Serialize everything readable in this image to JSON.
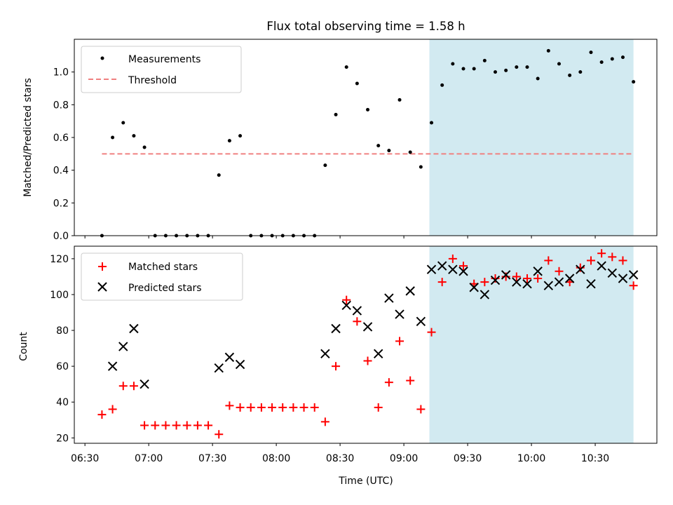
{
  "title": "Flux total observing time = 1.58 h",
  "colors": {
    "measurement": "#000000",
    "threshold": "#f08080",
    "matched": "#ff0000",
    "predicted": "#000000",
    "highlight": "#add8e6"
  },
  "chart_data": [
    {
      "type": "scatter",
      "name": "ratio-panel",
      "ylabel": "Matched/Predicted stars",
      "xlabel": "",
      "ylim": [
        0,
        1.2
      ],
      "yticks": [
        "0.0",
        "0.2",
        "0.4",
        "0.6",
        "0.8",
        "1.0"
      ],
      "legend": {
        "placement": "upper-left",
        "entries": [
          "Measurements",
          "Threshold"
        ]
      },
      "threshold": {
        "name": "Threshold",
        "value": 0.5,
        "x_start": "06:38",
        "x_end": "10:48"
      },
      "highlight_span": {
        "start": "09:12",
        "end": "10:48"
      },
      "series": [
        {
          "name": "Measurements",
          "x": [
            "06:38",
            "06:43",
            "06:48",
            "06:53",
            "06:58",
            "07:03",
            "07:08",
            "07:13",
            "07:18",
            "07:23",
            "07:28",
            "07:33",
            "07:38",
            "07:43",
            "07:48",
            "07:53",
            "07:58",
            "08:03",
            "08:08",
            "08:13",
            "08:18",
            "08:23",
            "08:28",
            "08:33",
            "08:38",
            "08:43",
            "08:48",
            "08:53",
            "08:58",
            "09:03",
            "09:08",
            "09:13",
            "09:18",
            "09:23",
            "09:28",
            "09:33",
            "09:38",
            "09:43",
            "09:48",
            "09:53",
            "09:58",
            "10:03",
            "10:08",
            "10:13",
            "10:18",
            "10:23",
            "10:28",
            "10:33",
            "10:38",
            "10:43",
            "10:48"
          ],
          "y": [
            0.0,
            0.6,
            0.69,
            0.61,
            0.54,
            0.0,
            0.0,
            0.0,
            0.0,
            0.0,
            0.0,
            0.37,
            0.58,
            0.61,
            0.0,
            0.0,
            0.0,
            0.0,
            0.0,
            0.0,
            0.0,
            0.43,
            0.74,
            1.03,
            0.93,
            0.77,
            0.55,
            0.52,
            0.83,
            0.51,
            0.42,
            0.69,
            0.92,
            1.05,
            1.02,
            1.02,
            1.07,
            1.0,
            1.01,
            1.03,
            1.03,
            0.96,
            1.13,
            1.05,
            0.98,
            1.0,
            1.12,
            1.06,
            1.08,
            1.09,
            0.94
          ]
        }
      ]
    },
    {
      "type": "scatter",
      "name": "count-panel",
      "ylabel": "Count",
      "xlabel": "Time (UTC)",
      "ylim": [
        17,
        127
      ],
      "yticks": [
        "20",
        "40",
        "60",
        "80",
        "100",
        "120"
      ],
      "xticks": [
        "06:30",
        "07:00",
        "07:30",
        "08:00",
        "08:30",
        "09:00",
        "09:30",
        "10:00",
        "10:30"
      ],
      "legend": {
        "placement": "upper-left",
        "entries": [
          "Matched stars",
          "Predicted stars"
        ]
      },
      "highlight_span": {
        "start": "09:12",
        "end": "10:48"
      },
      "series": [
        {
          "name": "Matched stars",
          "marker": "+",
          "x": [
            "06:38",
            "06:43",
            "06:48",
            "06:53",
            "06:58",
            "07:03",
            "07:08",
            "07:13",
            "07:18",
            "07:23",
            "07:28",
            "07:33",
            "07:38",
            "07:43",
            "07:48",
            "07:53",
            "07:58",
            "08:03",
            "08:08",
            "08:13",
            "08:18",
            "08:23",
            "08:28",
            "08:33",
            "08:38",
            "08:43",
            "08:48",
            "08:53",
            "08:58",
            "09:03",
            "09:08",
            "09:13",
            "09:18",
            "09:23",
            "09:28",
            "09:33",
            "09:38",
            "09:43",
            "09:48",
            "09:53",
            "09:58",
            "10:03",
            "10:08",
            "10:13",
            "10:18",
            "10:23",
            "10:28",
            "10:33",
            "10:38",
            "10:43",
            "10:48"
          ],
          "y": [
            33,
            36,
            49,
            49,
            27,
            27,
            27,
            27,
            27,
            27,
            27,
            22,
            38,
            37,
            37,
            37,
            37,
            37,
            37,
            37,
            37,
            29,
            60,
            97,
            85,
            63,
            37,
            51,
            74,
            52,
            36,
            79,
            107,
            120,
            116,
            106,
            107,
            109,
            110,
            110,
            109,
            109,
            119,
            113,
            107,
            115,
            119,
            123,
            121,
            119,
            105
          ]
        },
        {
          "name": "Predicted stars",
          "marker": "x",
          "x": [
            "06:43",
            "06:48",
            "06:53",
            "06:58",
            "07:33",
            "07:38",
            "07:43",
            "08:23",
            "08:28",
            "08:33",
            "08:38",
            "08:43",
            "08:48",
            "08:53",
            "08:58",
            "09:03",
            "09:08",
            "09:13",
            "09:18",
            "09:23",
            "09:28",
            "09:33",
            "09:38",
            "09:43",
            "09:48",
            "09:53",
            "09:58",
            "10:03",
            "10:08",
            "10:13",
            "10:18",
            "10:23",
            "10:28",
            "10:33",
            "10:38",
            "10:43",
            "10:48"
          ],
          "y": [
            60,
            71,
            81,
            50,
            59,
            65,
            61,
            67,
            81,
            94,
            91,
            82,
            67,
            98,
            89,
            102,
            85,
            114,
            116,
            114,
            113,
            104,
            100,
            108,
            111,
            107,
            106,
            113,
            105,
            107,
            109,
            114,
            106,
            116,
            112,
            109,
            111
          ]
        }
      ]
    }
  ]
}
